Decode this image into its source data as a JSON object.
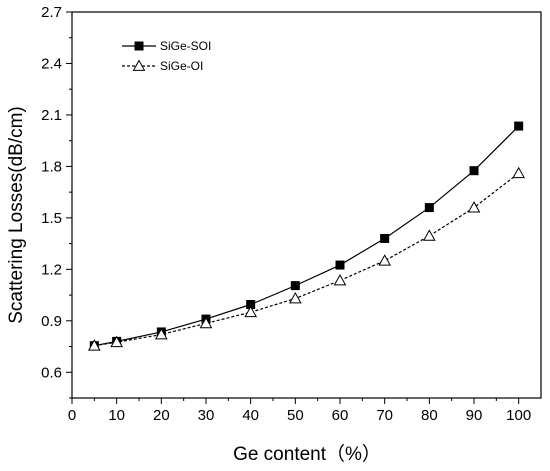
{
  "chart_data": {
    "type": "line",
    "title": "",
    "xlabel": "Ge content（%）",
    "ylabel": "Scattering Losses(dB/cm)",
    "xlim": [
      0,
      105
    ],
    "ylim": [
      0.45,
      2.7
    ],
    "x_ticks": [
      0,
      10,
      20,
      30,
      40,
      50,
      60,
      70,
      80,
      90,
      100
    ],
    "y_ticks": [
      0.6,
      0.9,
      1.2,
      1.5,
      1.8,
      2.1,
      2.4,
      2.7
    ],
    "x_tick_labels": [
      "0",
      "10",
      "20",
      "30",
      "40",
      "50",
      "60",
      "70",
      "80",
      "90",
      "100"
    ],
    "y_tick_labels": [
      "0.6",
      "0.9",
      "1.2",
      "1.5",
      "1.8",
      "2.1",
      "2.4",
      "2.7"
    ],
    "grid": false,
    "legend_position": "top-left",
    "x": [
      5,
      10,
      20,
      30,
      40,
      50,
      60,
      70,
      80,
      90,
      100
    ],
    "series": [
      {
        "name": "SiGe-SOI",
        "values": [
          0.755,
          0.78,
          0.835,
          0.91,
          0.995,
          1.105,
          1.225,
          1.38,
          1.56,
          1.775,
          2.035
        ],
        "line_style": "solid",
        "marker": "filled-square",
        "color": "#000000"
      },
      {
        "name": "SiGe-OI",
        "values": [
          0.755,
          0.775,
          0.82,
          0.885,
          0.95,
          1.03,
          1.135,
          1.25,
          1.395,
          1.56,
          1.76
        ],
        "line_style": "dashed",
        "marker": "open-triangle",
        "color": "#000000"
      }
    ]
  }
}
